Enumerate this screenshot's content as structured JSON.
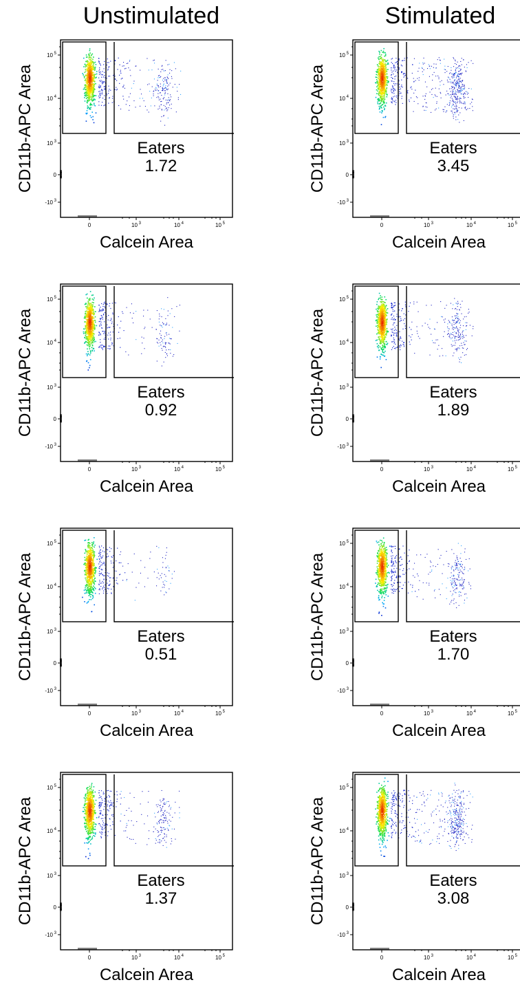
{
  "columns": [
    "Unstimulated",
    "Stimulated"
  ],
  "chart_data": [
    {
      "type": "scatter",
      "column": "Unstimulated",
      "row": 1,
      "xlabel": "Calcein Area",
      "ylabel": "CD11b-APC Area",
      "x_ticks": [
        "0",
        "10^3",
        "10^4",
        "10^5"
      ],
      "y_ticks": [
        "10^5",
        "10^4",
        "10^3",
        "0",
        "-10^3"
      ],
      "gate": {
        "name": "Eaters",
        "value": "1.72"
      }
    },
    {
      "type": "scatter",
      "column": "Stimulated",
      "row": 1,
      "xlabel": "Calcein Area",
      "ylabel": "CD11b-APC Area",
      "x_ticks": [
        "0",
        "10^3",
        "10^4",
        "10^5"
      ],
      "y_ticks": [
        "10^5",
        "10^4",
        "10^3",
        "0",
        "-10^3"
      ],
      "gate": {
        "name": "Eaters",
        "value": "3.45"
      }
    },
    {
      "type": "scatter",
      "column": "Unstimulated",
      "row": 2,
      "xlabel": "Calcein Area",
      "ylabel": "CD11b-APC Area",
      "x_ticks": [
        "0",
        "10^3",
        "10^4",
        "10^5"
      ],
      "y_ticks": [
        "10^5",
        "10^4",
        "10^3",
        "0",
        "-10^3"
      ],
      "gate": {
        "name": "Eaters",
        "value": "0.92"
      }
    },
    {
      "type": "scatter",
      "column": "Stimulated",
      "row": 2,
      "xlabel": "Calcein Area",
      "ylabel": "CD11b-APC Area",
      "x_ticks": [
        "0",
        "10^3",
        "10^4",
        "10^5"
      ],
      "y_ticks": [
        "10^5",
        "10^4",
        "10^3",
        "0",
        "-10^3"
      ],
      "gate": {
        "name": "Eaters",
        "value": "1.89"
      }
    },
    {
      "type": "scatter",
      "column": "Unstimulated",
      "row": 3,
      "xlabel": "Calcein Area",
      "ylabel": "CD11b-APC Area",
      "x_ticks": [
        "0",
        "10^3",
        "10^4",
        "10^5"
      ],
      "y_ticks": [
        "10^5",
        "10^4",
        "10^3",
        "0",
        "-10^3"
      ],
      "gate": {
        "name": "Eaters",
        "value": "0.51"
      }
    },
    {
      "type": "scatter",
      "column": "Stimulated",
      "row": 3,
      "xlabel": "Calcein Area",
      "ylabel": "CD11b-APC Area",
      "x_ticks": [
        "0",
        "10^3",
        "10^4",
        "10^5"
      ],
      "y_ticks": [
        "10^5",
        "10^4",
        "10^3",
        "0",
        "-10^3"
      ],
      "gate": {
        "name": "Eaters",
        "value": "1.70"
      }
    },
    {
      "type": "scatter",
      "column": "Unstimulated",
      "row": 4,
      "xlabel": "Calcein Area",
      "ylabel": "CD11b-APC Area",
      "x_ticks": [
        "0",
        "10^3",
        "10^4",
        "10^5"
      ],
      "y_ticks": [
        "10^5",
        "10^4",
        "10^3",
        "0",
        "-10^3"
      ],
      "gate": {
        "name": "Eaters",
        "value": "1.37"
      }
    },
    {
      "type": "scatter",
      "column": "Stimulated",
      "row": 4,
      "xlabel": "Calcein Area",
      "ylabel": "CD11b-APC Area",
      "x_ticks": [
        "0",
        "10^3",
        "10^4",
        "10^5"
      ],
      "y_ticks": [
        "10^5",
        "10^4",
        "10^3",
        "0",
        "-10^3"
      ],
      "gate": {
        "name": "Eaters",
        "value": "3.08"
      }
    }
  ]
}
